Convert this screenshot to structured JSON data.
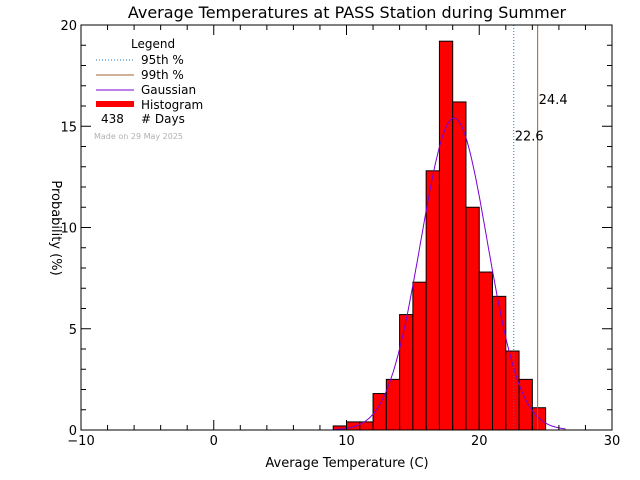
{
  "chart_data": {
    "type": "bar",
    "title": "Average Temperatures at PASS Station during Summer",
    "xlabel": "Average Temperature (C)",
    "ylabel": "Probability (%)",
    "xlim": [
      -10,
      30
    ],
    "ylim": [
      0,
      20
    ],
    "x_ticks": [
      "−10",
      "0",
      "10",
      "20",
      "30"
    ],
    "y_ticks": [
      "0",
      "5",
      "10",
      "15",
      "20"
    ],
    "bin_width": 1,
    "bins": [
      {
        "x0": 9,
        "value": 0.2
      },
      {
        "x0": 10,
        "value": 0.4
      },
      {
        "x0": 11,
        "value": 0.4
      },
      {
        "x0": 12,
        "value": 1.8
      },
      {
        "x0": 13,
        "value": 2.5
      },
      {
        "x0": 14,
        "value": 5.7
      },
      {
        "x0": 15,
        "value": 7.3
      },
      {
        "x0": 16,
        "value": 12.8
      },
      {
        "x0": 17,
        "value": 19.2
      },
      {
        "x0": 18,
        "value": 16.2
      },
      {
        "x0": 19,
        "value": 11.0
      },
      {
        "x0": 20,
        "value": 7.8
      },
      {
        "x0": 21,
        "value": 6.6
      },
      {
        "x0": 22,
        "value": 3.9
      },
      {
        "x0": 23,
        "value": 2.5
      },
      {
        "x0": 24,
        "value": 1.1
      }
    ],
    "gaussian": {
      "mean": 18.1,
      "sigma": 2.5,
      "peak": 15.4
    },
    "percentile_95": {
      "value": 22.6,
      "label": "22.6",
      "color": "#1f77c4"
    },
    "percentile_99": {
      "value": 24.4,
      "label": "24.4",
      "color": "#a0622d"
    },
    "legend": {
      "title": "Legend",
      "items": [
        {
          "label": "95th %",
          "style": "dotted",
          "color": "#1f77c4"
        },
        {
          "label": "99th %",
          "style": "solid",
          "color": "#a0622d"
        },
        {
          "label": "Gaussian",
          "style": "solid",
          "color": "#7a00d4"
        },
        {
          "label": "Histogram",
          "style": "thick",
          "color": "#ff0000"
        }
      ],
      "days_count": "438",
      "days_label": "# Days",
      "made_on": "Made on 29 May 2025"
    },
    "histogram_color": "#ff0000",
    "gaussian_color": "#7a00d4"
  }
}
